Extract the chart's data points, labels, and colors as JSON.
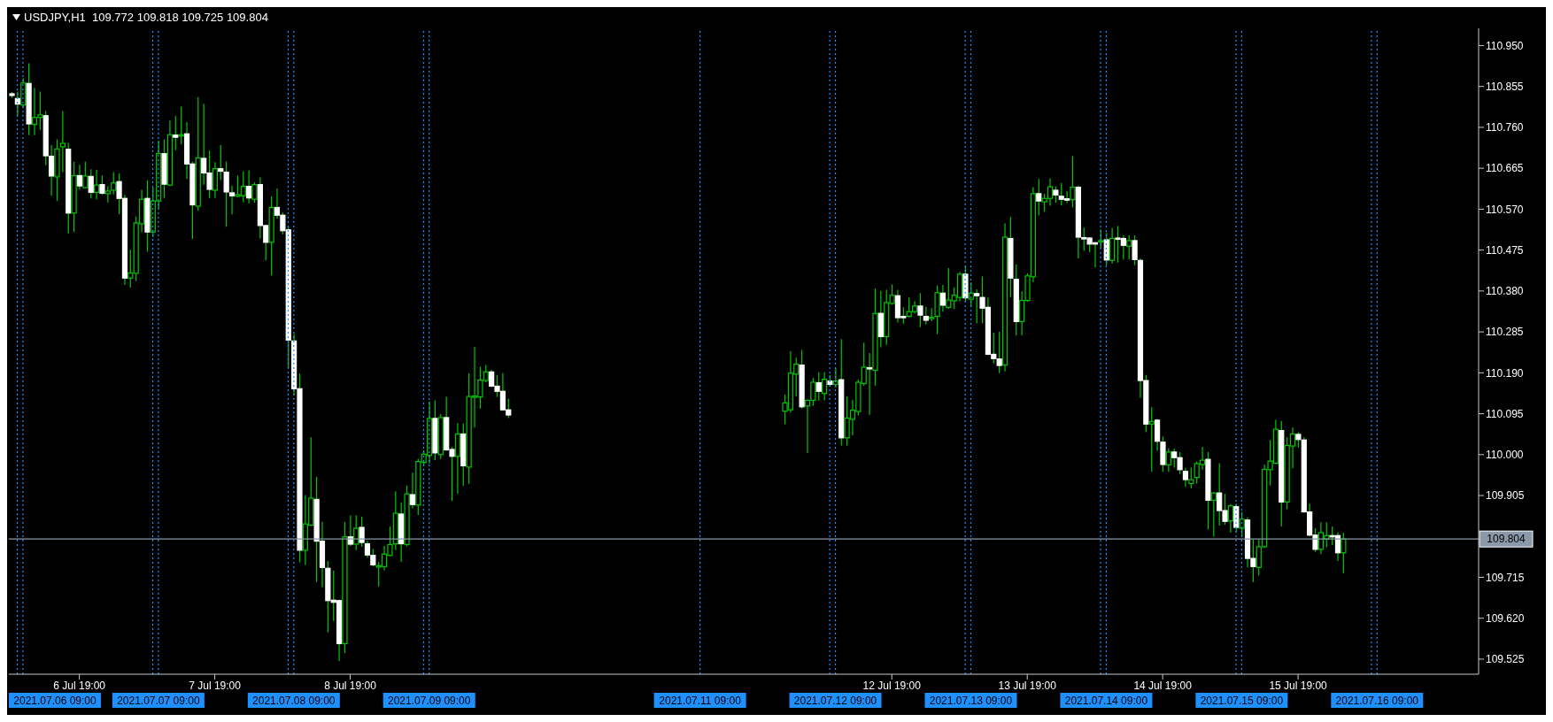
{
  "chart_data": {
    "type": "candlestick",
    "title": "USDJPY,H1  109.772 109.818 109.725 109.804",
    "color": "#00c800",
    "x": [
      "2021-07-06T07:00",
      "2021-07-06T08:00",
      "2021-07-06T09:00",
      "2021-07-06T10:00",
      "2021-07-06T11:00",
      "2021-07-06T12:00",
      "2021-07-06T13:00",
      "2021-07-06T14:00",
      "2021-07-06T15:00",
      "2021-07-06T16:00",
      "2021-07-06T17:00",
      "2021-07-06T18:00",
      "2021-07-06T19:00",
      "2021-07-06T20:00",
      "2021-07-06T21:00",
      "2021-07-06T22:00",
      "2021-07-06T23:00",
      "2021-07-07T00:00",
      "2021-07-07T01:00",
      "2021-07-07T02:00",
      "2021-07-07T03:00",
      "2021-07-07T04:00",
      "2021-07-07T05:00",
      "2021-07-07T06:00",
      "2021-07-07T07:00",
      "2021-07-07T08:00",
      "2021-07-07T09:00",
      "2021-07-07T10:00",
      "2021-07-07T11:00",
      "2021-07-07T12:00",
      "2021-07-07T13:00",
      "2021-07-07T14:00",
      "2021-07-07T15:00",
      "2021-07-07T16:00",
      "2021-07-07T17:00",
      "2021-07-07T18:00",
      "2021-07-07T19:00",
      "2021-07-07T20:00",
      "2021-07-07T21:00",
      "2021-07-07T22:00",
      "2021-07-07T23:00",
      "2021-07-08T00:00",
      "2021-07-08T01:00",
      "2021-07-08T02:00",
      "2021-07-08T03:00",
      "2021-07-08T04:00",
      "2021-07-08T05:00",
      "2021-07-08T06:00",
      "2021-07-08T07:00",
      "2021-07-08T08:00",
      "2021-07-08T09:00",
      "2021-07-08T10:00",
      "2021-07-08T11:00",
      "2021-07-08T12:00",
      "2021-07-08T13:00",
      "2021-07-08T14:00",
      "2021-07-08T15:00",
      "2021-07-08T16:00",
      "2021-07-08T17:00",
      "2021-07-08T18:00",
      "2021-07-08T19:00",
      "2021-07-08T20:00",
      "2021-07-08T21:00",
      "2021-07-08T22:00",
      "2021-07-08T23:00",
      "2021-07-09T00:00",
      "2021-07-09T01:00",
      "2021-07-09T02:00",
      "2021-07-09T03:00",
      "2021-07-09T04:00",
      "2021-07-09T05:00",
      "2021-07-09T06:00",
      "2021-07-09T07:00",
      "2021-07-09T08:00",
      "2021-07-09T09:00",
      "2021-07-09T10:00",
      "2021-07-09T11:00",
      "2021-07-09T12:00",
      "2021-07-09T13:00",
      "2021-07-09T14:00",
      "2021-07-09T15:00",
      "2021-07-09T16:00",
      "2021-07-09T17:00",
      "2021-07-09T18:00",
      "2021-07-09T19:00",
      "2021-07-09T20:00",
      "2021-07-09T21:00",
      "2021-07-09T22:00",
      "2021-07-09T23:00",
      "2021-07-12T00:00",
      "2021-07-12T01:00",
      "2021-07-12T02:00",
      "2021-07-12T03:00",
      "2021-07-12T04:00",
      "2021-07-12T05:00",
      "2021-07-12T06:00",
      "2021-07-12T07:00",
      "2021-07-12T08:00",
      "2021-07-12T09:00",
      "2021-07-12T10:00",
      "2021-07-12T11:00",
      "2021-07-12T12:00",
      "2021-07-12T13:00",
      "2021-07-12T14:00",
      "2021-07-12T15:00",
      "2021-07-12T16:00",
      "2021-07-12T17:00",
      "2021-07-12T18:00",
      "2021-07-12T19:00",
      "2021-07-12T20:00",
      "2021-07-12T21:00",
      "2021-07-12T22:00",
      "2021-07-12T23:00",
      "2021-07-13T00:00",
      "2021-07-13T01:00",
      "2021-07-13T02:00",
      "2021-07-13T03:00",
      "2021-07-13T04:00",
      "2021-07-13T05:00",
      "2021-07-13T06:00",
      "2021-07-13T07:00",
      "2021-07-13T08:00",
      "2021-07-13T09:00",
      "2021-07-13T10:00",
      "2021-07-13T11:00",
      "2021-07-13T12:00",
      "2021-07-13T13:00",
      "2021-07-13T14:00",
      "2021-07-13T15:00",
      "2021-07-13T16:00",
      "2021-07-13T17:00",
      "2021-07-13T18:00",
      "2021-07-13T19:00",
      "2021-07-13T20:00",
      "2021-07-13T21:00",
      "2021-07-13T22:00",
      "2021-07-13T23:00",
      "2021-07-14T00:00",
      "2021-07-14T01:00",
      "2021-07-14T02:00",
      "2021-07-14T03:00",
      "2021-07-14T04:00",
      "2021-07-14T05:00",
      "2021-07-14T06:00",
      "2021-07-14T07:00",
      "2021-07-14T08:00",
      "2021-07-14T09:00",
      "2021-07-14T10:00",
      "2021-07-14T11:00",
      "2021-07-14T12:00",
      "2021-07-14T13:00",
      "2021-07-14T14:00",
      "2021-07-14T15:00",
      "2021-07-14T16:00",
      "2021-07-14T17:00",
      "2021-07-14T18:00",
      "2021-07-14T19:00",
      "2021-07-14T20:00",
      "2021-07-14T21:00",
      "2021-07-14T22:00",
      "2021-07-14T23:00",
      "2021-07-15T00:00",
      "2021-07-15T01:00",
      "2021-07-15T02:00",
      "2021-07-15T03:00",
      "2021-07-15T04:00",
      "2021-07-15T05:00",
      "2021-07-15T06:00",
      "2021-07-15T07:00",
      "2021-07-15T08:00",
      "2021-07-15T09:00",
      "2021-07-15T10:00",
      "2021-07-15T11:00",
      "2021-07-15T12:00",
      "2021-07-15T13:00",
      "2021-07-15T14:00",
      "2021-07-15T15:00",
      "2021-07-15T16:00",
      "2021-07-15T17:00",
      "2021-07-15T18:00",
      "2021-07-15T19:00",
      "2021-07-15T20:00",
      "2021-07-15T21:00",
      "2021-07-15T22:00",
      "2021-07-15T23:00",
      "2021-07-16T00:00",
      "2021-07-16T01:00",
      "2021-07-16T02:00",
      "2021-07-16T03:00"
    ],
    "ohlc": [
      [
        110.838,
        110.842,
        110.828,
        110.834
      ],
      [
        110.827,
        110.843,
        110.786,
        110.814
      ],
      [
        110.812,
        110.874,
        110.805,
        110.863
      ],
      [
        110.862,
        110.909,
        110.742,
        110.768
      ],
      [
        110.767,
        110.852,
        110.742,
        110.783
      ],
      [
        110.783,
        110.843,
        110.754,
        110.789
      ],
      [
        110.787,
        110.798,
        110.672,
        110.694
      ],
      [
        110.693,
        110.719,
        110.601,
        110.647
      ],
      [
        110.645,
        110.732,
        110.589,
        110.71
      ],
      [
        110.715,
        110.798,
        110.656,
        110.723
      ],
      [
        110.709,
        110.724,
        110.514,
        110.561
      ],
      [
        110.561,
        110.68,
        110.517,
        110.648
      ],
      [
        110.648,
        110.673,
        110.615,
        110.624
      ],
      [
        110.62,
        110.68,
        110.618,
        110.647
      ],
      [
        110.646,
        110.663,
        110.595,
        110.609
      ],
      [
        110.609,
        110.661,
        110.593,
        110.626
      ],
      [
        110.627,
        110.648,
        110.603,
        110.607
      ],
      [
        110.606,
        110.623,
        110.585,
        110.612
      ],
      [
        110.614,
        110.656,
        110.604,
        110.631
      ],
      [
        110.634,
        110.653,
        110.558,
        110.595
      ],
      [
        110.595,
        110.603,
        110.394,
        110.41
      ],
      [
        110.41,
        110.476,
        110.388,
        110.422
      ],
      [
        110.421,
        110.553,
        110.403,
        110.538
      ],
      [
        110.536,
        110.615,
        110.517,
        110.593
      ],
      [
        110.595,
        110.637,
        110.471,
        110.517
      ],
      [
        110.517,
        110.62,
        110.505,
        110.589
      ],
      [
        110.589,
        110.729,
        110.571,
        110.699
      ],
      [
        110.699,
        110.732,
        110.596,
        110.628
      ],
      [
        110.626,
        110.776,
        110.623,
        110.743
      ],
      [
        110.742,
        110.786,
        110.707,
        110.737
      ],
      [
        110.74,
        110.808,
        110.721,
        110.743
      ],
      [
        110.745,
        110.772,
        110.64,
        110.675
      ],
      [
        110.675,
        110.68,
        110.501,
        110.58
      ],
      [
        110.577,
        110.83,
        110.566,
        110.689
      ],
      [
        110.688,
        110.815,
        110.627,
        110.654
      ],
      [
        110.654,
        110.706,
        110.596,
        110.616
      ],
      [
        110.614,
        110.679,
        110.596,
        110.664
      ],
      [
        110.664,
        110.719,
        110.638,
        110.658
      ],
      [
        110.656,
        110.681,
        110.529,
        110.61
      ],
      [
        110.608,
        110.624,
        110.558,
        110.601
      ],
      [
        110.6,
        110.648,
        110.598,
        110.604
      ],
      [
        110.601,
        110.658,
        110.586,
        110.623
      ],
      [
        110.623,
        110.66,
        110.583,
        110.596
      ],
      [
        110.593,
        110.632,
        110.585,
        110.627
      ],
      [
        110.627,
        110.644,
        110.502,
        110.532
      ],
      [
        110.532,
        110.534,
        110.451,
        110.493
      ],
      [
        110.493,
        110.6,
        110.416,
        110.574
      ],
      [
        110.574,
        110.618,
        110.548,
        110.556
      ],
      [
        110.556,
        110.562,
        110.512,
        110.52
      ],
      [
        110.522,
        110.53,
        110.201,
        110.266
      ],
      [
        110.264,
        110.28,
        110.138,
        110.153
      ],
      [
        110.153,
        110.188,
        109.75,
        109.778
      ],
      [
        109.778,
        109.906,
        109.744,
        109.839
      ],
      [
        109.836,
        110.04,
        109.834,
        109.899
      ],
      [
        109.896,
        109.948,
        109.704,
        109.799
      ],
      [
        109.799,
        109.844,
        109.692,
        109.738
      ],
      [
        109.736,
        109.753,
        109.587,
        109.661
      ],
      [
        109.662,
        109.731,
        109.614,
        109.657
      ],
      [
        109.661,
        109.663,
        109.521,
        109.561
      ],
      [
        109.561,
        109.844,
        109.539,
        109.809
      ],
      [
        109.809,
        109.859,
        109.788,
        109.792
      ],
      [
        109.792,
        109.859,
        109.778,
        109.829
      ],
      [
        109.831,
        109.856,
        109.786,
        109.796
      ],
      [
        109.793,
        109.8,
        109.761,
        109.767
      ],
      [
        109.766,
        109.781,
        109.74,
        109.744
      ],
      [
        109.741,
        109.751,
        109.694,
        109.742
      ],
      [
        109.74,
        109.788,
        109.731,
        109.769
      ],
      [
        109.766,
        109.833,
        109.764,
        109.791
      ],
      [
        109.793,
        109.915,
        109.778,
        109.864
      ],
      [
        109.862,
        109.889,
        109.751,
        109.793
      ],
      [
        109.791,
        109.928,
        109.787,
        109.909
      ],
      [
        109.907,
        109.958,
        109.875,
        109.884
      ],
      [
        109.883,
        109.99,
        109.86,
        109.984
      ],
      [
        109.982,
        110.01,
        109.976,
        110.001
      ],
      [
        109.998,
        110.123,
        109.979,
        110.084
      ],
      [
        110.084,
        110.126,
        109.987,
        110.004
      ],
      [
        110.0,
        110.094,
        109.99,
        110.086
      ],
      [
        110.086,
        110.134,
        110.009,
        110.011
      ],
      [
        110.012,
        110.018,
        109.892,
        109.996
      ],
      [
        109.996,
        110.073,
        109.909,
        110.048
      ],
      [
        110.048,
        110.072,
        109.927,
        109.974
      ],
      [
        109.971,
        110.189,
        109.932,
        110.135
      ],
      [
        110.135,
        110.25,
        110.063,
        110.136
      ],
      [
        110.134,
        110.204,
        110.107,
        110.173
      ],
      [
        110.172,
        110.208,
        110.168,
        110.192
      ],
      [
        110.192,
        110.197,
        110.157,
        110.159
      ],
      [
        110.159,
        110.185,
        110.134,
        110.147
      ],
      [
        110.147,
        110.189,
        110.102,
        110.104
      ],
      [
        110.104,
        110.13,
        110.085,
        110.092
      ],
      [
        110.101,
        110.14,
        110.071,
        110.12
      ],
      [
        110.104,
        110.24,
        110.097,
        110.189
      ],
      [
        110.187,
        110.225,
        110.135,
        110.21
      ],
      [
        110.208,
        110.243,
        110.107,
        110.111
      ],
      [
        110.113,
        110.128,
        110.003,
        110.126
      ],
      [
        110.126,
        110.178,
        110.113,
        110.168
      ],
      [
        110.167,
        110.191,
        110.126,
        110.147
      ],
      [
        110.142,
        110.191,
        110.126,
        110.175
      ],
      [
        110.171,
        110.185,
        110.158,
        110.163
      ],
      [
        110.163,
        110.2,
        110.155,
        110.171
      ],
      [
        110.174,
        110.268,
        110.021,
        110.039
      ],
      [
        110.039,
        110.135,
        110.021,
        110.085
      ],
      [
        110.082,
        110.127,
        110.045,
        110.103
      ],
      [
        110.1,
        110.174,
        110.091,
        110.168
      ],
      [
        110.165,
        110.26,
        110.16,
        110.203
      ],
      [
        110.202,
        110.236,
        110.092,
        110.2
      ],
      [
        110.196,
        110.386,
        110.16,
        110.328
      ],
      [
        110.328,
        110.38,
        110.249,
        110.274
      ],
      [
        110.274,
        110.383,
        110.255,
        110.353
      ],
      [
        110.351,
        110.395,
        110.348,
        110.37
      ],
      [
        110.369,
        110.383,
        110.307,
        110.318
      ],
      [
        110.321,
        110.342,
        110.304,
        110.32
      ],
      [
        110.321,
        110.365,
        110.318,
        110.332
      ],
      [
        110.332,
        110.356,
        110.328,
        110.345
      ],
      [
        110.345,
        110.375,
        110.296,
        110.324
      ],
      [
        110.321,
        110.343,
        110.302,
        110.312
      ],
      [
        110.318,
        110.34,
        110.31,
        110.319
      ],
      [
        110.321,
        110.393,
        110.28,
        110.376
      ],
      [
        110.375,
        110.394,
        110.332,
        110.347
      ],
      [
        110.342,
        110.433,
        110.338,
        110.359
      ],
      [
        110.357,
        110.388,
        110.338,
        110.37
      ],
      [
        110.365,
        110.424,
        110.356,
        110.419
      ],
      [
        110.419,
        110.438,
        110.356,
        110.364
      ],
      [
        110.361,
        110.4,
        110.343,
        110.375
      ],
      [
        110.374,
        110.384,
        110.305,
        110.369
      ],
      [
        110.365,
        110.414,
        110.305,
        110.34
      ],
      [
        110.342,
        110.365,
        110.231,
        110.233
      ],
      [
        110.233,
        110.283,
        110.212,
        110.223
      ],
      [
        110.222,
        110.285,
        110.189,
        110.207
      ],
      [
        110.208,
        110.537,
        110.193,
        110.505
      ],
      [
        110.502,
        110.552,
        110.366,
        110.41
      ],
      [
        110.407,
        110.442,
        110.277,
        110.309
      ],
      [
        110.309,
        110.379,
        110.277,
        110.358
      ],
      [
        110.358,
        110.421,
        110.355,
        110.415
      ],
      [
        110.413,
        110.621,
        110.401,
        110.606
      ],
      [
        110.606,
        110.64,
        110.556,
        110.589
      ],
      [
        110.587,
        110.606,
        110.564,
        110.595
      ],
      [
        110.595,
        110.641,
        110.578,
        110.622
      ],
      [
        110.614,
        110.623,
        110.585,
        110.603
      ],
      [
        110.6,
        110.631,
        110.579,
        110.593
      ],
      [
        110.594,
        110.612,
        110.584,
        110.593
      ],
      [
        110.592,
        110.693,
        110.574,
        110.621
      ],
      [
        110.621,
        110.625,
        110.456,
        110.505
      ],
      [
        110.504,
        110.527,
        110.473,
        110.503
      ],
      [
        110.503,
        110.505,
        110.47,
        110.489
      ],
      [
        110.492,
        110.494,
        110.435,
        110.491
      ],
      [
        110.496,
        110.522,
        110.48,
        110.497
      ],
      [
        110.499,
        110.515,
        110.44,
        110.452
      ],
      [
        110.451,
        110.526,
        110.444,
        110.502
      ],
      [
        110.503,
        110.531,
        110.446,
        110.5
      ],
      [
        110.502,
        110.509,
        110.453,
        110.486
      ],
      [
        110.484,
        110.509,
        110.453,
        110.497
      ],
      [
        110.497,
        110.509,
        110.44,
        110.453
      ],
      [
        110.451,
        110.455,
        110.132,
        110.172
      ],
      [
        110.172,
        110.185,
        110.052,
        110.071
      ],
      [
        110.071,
        110.11,
        109.96,
        110.077
      ],
      [
        110.08,
        110.083,
        110.009,
        110.031
      ],
      [
        110.029,
        110.042,
        109.96,
        109.977
      ],
      [
        109.976,
        110.015,
        109.96,
        110.006
      ],
      [
        110.006,
        110.014,
        109.97,
        109.993
      ],
      [
        109.993,
        110.006,
        109.955,
        109.965
      ],
      [
        109.961,
        109.968,
        109.925,
        109.942
      ],
      [
        109.933,
        109.97,
        109.922,
        109.942
      ],
      [
        109.947,
        109.984,
        109.933,
        109.979
      ],
      [
        109.977,
        110.018,
        109.965,
        109.987
      ],
      [
        109.989,
        110.006,
        109.826,
        109.894
      ],
      [
        109.894,
        109.913,
        109.81,
        109.911
      ],
      [
        109.911,
        109.98,
        109.835,
        109.87
      ],
      [
        109.87,
        109.909,
        109.837,
        109.845
      ],
      [
        109.846,
        109.885,
        109.819,
        109.881
      ],
      [
        109.879,
        109.886,
        109.82,
        109.831
      ],
      [
        109.829,
        109.867,
        109.81,
        109.85
      ],
      [
        109.848,
        109.854,
        109.738,
        109.759
      ],
      [
        109.759,
        109.803,
        109.704,
        109.74
      ],
      [
        109.738,
        109.803,
        109.719,
        109.786
      ],
      [
        109.786,
        109.977,
        109.784,
        109.966
      ],
      [
        109.965,
        110.034,
        109.928,
        109.985
      ],
      [
        109.98,
        110.081,
        109.978,
        110.059
      ],
      [
        110.056,
        110.078,
        109.833,
        109.89
      ],
      [
        109.89,
        110.04,
        109.873,
        110.021
      ],
      [
        110.02,
        110.063,
        109.968,
        110.048
      ],
      [
        110.047,
        110.052,
        110.016,
        110.035
      ],
      [
        110.034,
        110.04,
        109.865,
        109.867
      ],
      [
        109.867,
        109.886,
        109.81,
        109.813
      ],
      [
        109.813,
        109.829,
        109.774,
        109.78
      ],
      [
        109.78,
        109.843,
        109.769,
        109.819
      ],
      [
        109.804,
        109.843,
        109.785,
        109.812
      ],
      [
        109.812,
        109.833,
        109.79,
        109.811
      ],
      [
        109.812,
        109.82,
        109.753,
        109.772
      ],
      [
        109.772,
        109.818,
        109.725,
        109.804
      ]
    ],
    "colors": [
      "#ffffff",
      "#ffffff",
      "#00c800",
      "#ffffff",
      "#00c800",
      "#00c800",
      "#ffffff",
      "#ffffff",
      "#00c800",
      "#00c800",
      "#ffffff",
      "#00c800",
      "#ffffff",
      "#00c800",
      "#ffffff",
      "#00c800",
      "#ffffff",
      "#00c800",
      "#00c800",
      "#ffffff",
      "#ffffff",
      "#00c800",
      "#00c800",
      "#00c800",
      "#ffffff",
      "#00c800",
      "#00c800",
      "#ffffff",
      "#00c800",
      "#ffffff",
      "#00c800",
      "#ffffff",
      "#ffffff",
      "#00c800",
      "#ffffff",
      "#ffffff",
      "#00c800",
      "#ffffff",
      "#ffffff",
      "#ffffff",
      "#00c800",
      "#00c800",
      "#ffffff",
      "#00c800",
      "#ffffff",
      "#ffffff",
      "#00c800",
      "#ffffff",
      "#ffffff",
      "#ffffff",
      "#ffffff",
      "#ffffff",
      "#00c800",
      "#00c800",
      "#ffffff",
      "#ffffff",
      "#ffffff",
      "#ffffff",
      "#ffffff",
      "#00c800",
      "#ffffff",
      "#00c800",
      "#ffffff",
      "#ffffff",
      "#ffffff",
      "#00c800",
      "#00c800",
      "#00c800",
      "#00c800",
      "#ffffff",
      "#00c800",
      "#ffffff",
      "#00c800",
      "#00c800",
      "#00c800",
      "#ffffff",
      "#00c800",
      "#ffffff",
      "#ffffff",
      "#00c800",
      "#ffffff",
      "#00c800",
      "#00c800",
      "#00c800",
      "#00c800",
      "#ffffff",
      "#ffffff",
      "#ffffff",
      "#ffffff",
      "#00c800",
      "#00c800",
      "#00c800",
      "#ffffff",
      "#00c800",
      "#00c800",
      "#ffffff",
      "#00c800",
      "#ffffff",
      "#00c800",
      "#ffffff",
      "#00c800",
      "#00c800",
      "#00c800",
      "#00c800",
      "#ffffff",
      "#00c800",
      "#ffffff",
      "#00c800",
      "#00c800",
      "#ffffff",
      "#ffffff",
      "#00c800",
      "#00c800",
      "#ffffff",
      "#ffffff",
      "#00c800",
      "#00c800",
      "#ffffff",
      "#00c800",
      "#00c800",
      "#00c800",
      "#ffffff",
      "#00c800",
      "#ffffff",
      "#ffffff",
      "#ffffff",
      "#ffffff",
      "#ffffff",
      "#00c800",
      "#ffffff",
      "#ffffff",
      "#00c800",
      "#00c800",
      "#00c800",
      "#ffffff",
      "#00c800",
      "#00c800",
      "#ffffff",
      "#ffffff",
      "#ffffff",
      "#00c800",
      "#ffffff",
      "#ffffff",
      "#ffffff",
      "#ffffff",
      "#00c800",
      "#ffffff",
      "#00c800",
      "#ffffff",
      "#ffffff",
      "#00c800",
      "#ffffff",
      "#ffffff",
      "#ffffff",
      "#00c800",
      "#ffffff",
      "#ffffff",
      "#00c800",
      "#ffffff",
      "#ffffff",
      "#ffffff",
      "#00c800",
      "#00c800",
      "#00c800",
      "#ffffff",
      "#00c800",
      "#ffffff",
      "#ffffff",
      "#00c800",
      "#ffffff",
      "#00c800",
      "#ffffff",
      "#ffffff",
      "#00c800",
      "#00c800",
      "#00c800",
      "#00c800",
      "#ffffff",
      "#00c800",
      "#00c800",
      "#ffffff",
      "#ffffff",
      "#ffffff",
      "#ffffff",
      "#00c800",
      "#00c800",
      "#ffffff",
      "#ffffff",
      "#00c800"
    ],
    "xlim": [
      "2021-07-06T06:30",
      "2021-07-17T03:00"
    ],
    "xticks": [
      {
        "value": "2021-07-06T19:00",
        "label": "6 Jul 19:00"
      },
      {
        "value": "2021-07-07T19:00",
        "label": "7 Jul 19:00"
      },
      {
        "value": "2021-07-08T19:00",
        "label": "8 Jul 19:00"
      },
      {
        "value": "2021-07-12T19:00",
        "label": "12 Jul 19:00"
      },
      {
        "value": "2021-07-13T19:00",
        "label": "13 Jul 19:00"
      },
      {
        "value": "2021-07-14T19:00",
        "label": "14 Jul 19:00"
      },
      {
        "value": "2021-07-15T19:00",
        "label": "15 Jul 19:00"
      }
    ],
    "ylim": [
      109.49,
      110.99
    ],
    "yticks": [
      109.525,
      {
        "value": 109.62,
        "label": "109.620"
      },
      109.715,
      109.905,
      {
        "value": 110,
        "label": "110.000"
      },
      110.095,
      {
        "value": 110.19,
        "label": "110.190"
      },
      110.285,
      {
        "value": 110.38,
        "label": "110.380"
      },
      110.475,
      {
        "value": 110.57,
        "label": "110.570"
      },
      110.665,
      {
        "value": 110.76,
        "label": "110.760"
      },
      110.855,
      {
        "value": 110.95,
        "label": "110.950"
      }
    ],
    "ref_lines": [
      {
        "axis": "x",
        "value": "2021-07-06T08:00",
        "color": "#1e90ff",
        "line_style": "dotted"
      },
      {
        "axis": "x",
        "value": "2021-07-06T09:00",
        "label": "2021.07.06 09:00",
        "color": "#1e90ff",
        "line_style": "dotted"
      },
      {
        "axis": "x",
        "value": "2021-07-07T08:00",
        "color": "#1e90ff",
        "line_style": "dotted"
      },
      {
        "axis": "x",
        "value": "2021-07-07T09:00",
        "label": "2021.07.07 09:00",
        "color": "#1e90ff",
        "line_style": "dotted"
      },
      {
        "axis": "x",
        "value": "2021-07-08T08:00",
        "color": "#1e90ff",
        "line_style": "dotted"
      },
      {
        "axis": "x",
        "value": "2021-07-08T09:00",
        "label": "2021.07.08 09:00",
        "color": "#1e90ff",
        "line_style": "dotted"
      },
      {
        "axis": "x",
        "value": "2021-07-09T08:00",
        "color": "#1e90ff",
        "line_style": "dotted"
      },
      {
        "axis": "x",
        "value": "2021-07-09T09:00",
        "label": "2021.07.09 09:00",
        "color": "#1e90ff",
        "line_style": "dotted"
      },
      {
        "axis": "x",
        "value": "2021-07-11T09:00",
        "label": "2021.07.11 09:00",
        "color": "#1e90ff",
        "line_style": "dotted"
      },
      {
        "axis": "x",
        "value": "2021-07-12T08:00",
        "color": "#1e90ff",
        "line_style": "dotted"
      },
      {
        "axis": "x",
        "value": "2021-07-12T09:00",
        "label": "2021.07.12 09:00",
        "color": "#1e90ff",
        "line_style": "dotted"
      },
      {
        "axis": "x",
        "value": "2021-07-13T08:00",
        "color": "#1e90ff",
        "line_style": "dotted"
      },
      {
        "axis": "x",
        "value": "2021-07-13T09:00",
        "label": "2021.07.13 09:00",
        "color": "#1e90ff",
        "line_style": "dotted"
      },
      {
        "axis": "x",
        "value": "2021-07-14T08:00",
        "color": "#1e90ff",
        "line_style": "dotted"
      },
      {
        "axis": "x",
        "value": "2021-07-14T09:00",
        "label": "2021.07.14 09:00",
        "color": "#1e90ff",
        "line_style": "dotted"
      },
      {
        "axis": "x",
        "value": "2021-07-15T08:00",
        "color": "#1e90ff",
        "line_style": "dotted"
      },
      {
        "axis": "x",
        "value": "2021-07-15T09:00",
        "label": "2021.07.15 09:00",
        "color": "#1e90ff",
        "line_style": "dotted"
      },
      {
        "axis": "x",
        "value": "2021-07-16T08:00",
        "color": "#1e90ff",
        "line_style": "dotted"
      },
      {
        "axis": "x",
        "value": "2021-07-16T09:00",
        "label": "2021.07.16 09:00",
        "color": "#1e90ff",
        "line_style": "dotted"
      },
      {
        "axis": "y",
        "value": 109.804,
        "label": "109.804",
        "color": "#8a9aab",
        "line_style": "solid"
      }
    ]
  }
}
